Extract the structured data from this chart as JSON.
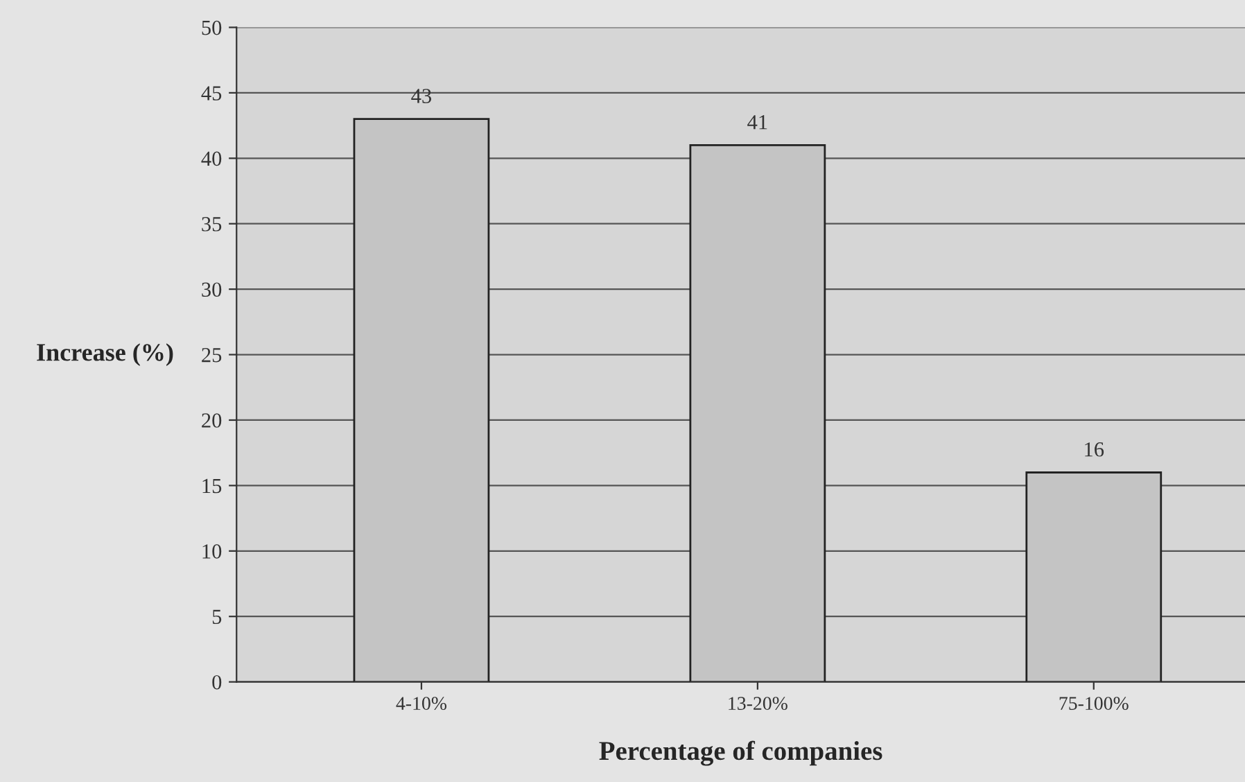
{
  "chart_data": {
    "type": "bar",
    "xlabel": "Percentage of companies",
    "ylabel": "Increase (%)",
    "categories": [
      "4-10%",
      "13-20%",
      "75-100%"
    ],
    "values": [
      43,
      41,
      16
    ],
    "color": "#c4c4c4",
    "ylim": [
      0,
      50
    ],
    "yticks": [
      0,
      5,
      10,
      15,
      20,
      25,
      30,
      35,
      40,
      45,
      50
    ],
    "grid": "y",
    "data_labels": true
  }
}
